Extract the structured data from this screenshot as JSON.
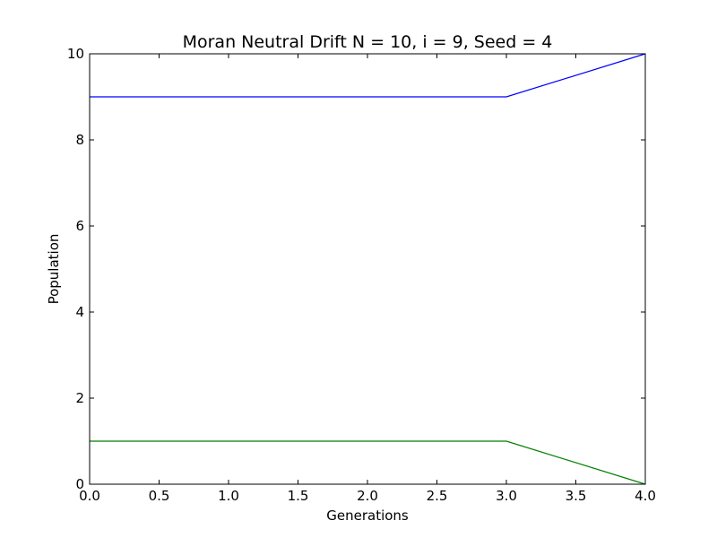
{
  "chart_data": {
    "type": "line",
    "title": "Moran Neutral Drift N = 10, i = 9, Seed = 4",
    "xlabel": "Generations",
    "ylabel": "Population",
    "xlim": [
      0,
      4
    ],
    "ylim": [
      0,
      10
    ],
    "x_ticks": [
      "0.0",
      "0.5",
      "1.0",
      "1.5",
      "2.0",
      "2.5",
      "3.0",
      "3.5",
      "4.0"
    ],
    "y_ticks": [
      "0",
      "2",
      "4",
      "6",
      "8",
      "10"
    ],
    "grid": false,
    "legend": "none",
    "x": [
      0,
      1,
      2,
      3,
      4
    ],
    "series": [
      {
        "values": [
          9,
          9,
          9,
          9,
          10
        ],
        "color": "#0000ff"
      },
      {
        "values": [
          1,
          1,
          1,
          1,
          0
        ],
        "color": "#008000"
      }
    ]
  }
}
